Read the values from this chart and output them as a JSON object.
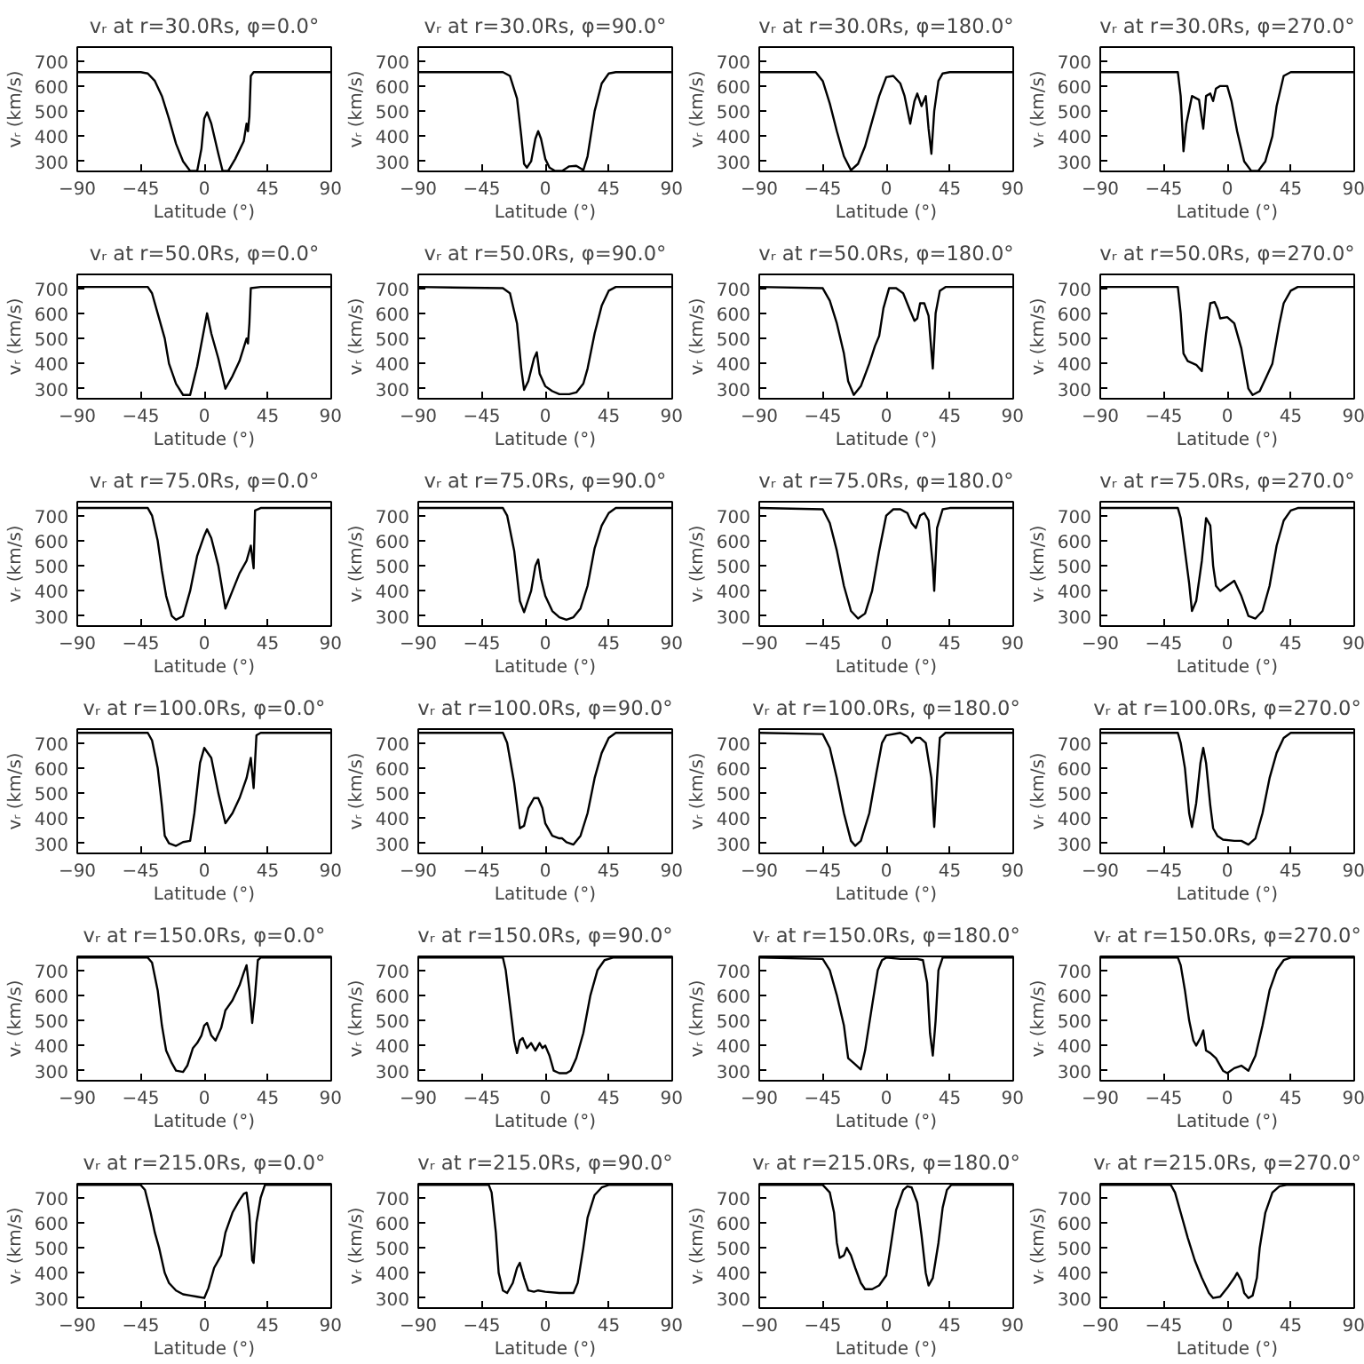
{
  "chart_data": [
    {
      "type": "line",
      "title": "vᵣ at r=30.0Rs, φ=0.0°",
      "xlabel": "Latitude (°)",
      "ylabel": "vᵣ (km/s)",
      "color": "#000000",
      "xlim": [
        -90,
        90
      ],
      "ylim": [
        260,
        755
      ],
      "xticks": [
        -90,
        -45,
        0,
        45,
        90
      ],
      "yticks": [
        300,
        400,
        500,
        600,
        700
      ],
      "x": [
        -90,
        -45,
        -40,
        -35,
        -30,
        -25,
        -20,
        -15,
        -10,
        -5,
        -2,
        0,
        2,
        5,
        10,
        13,
        17,
        22,
        28,
        30,
        31,
        32,
        33,
        35,
        90
      ],
      "values": [
        655,
        655,
        650,
        620,
        560,
        470,
        370,
        300,
        262,
        262,
        350,
        470,
        495,
        450,
        330,
        262,
        262,
        310,
        380,
        450,
        420,
        480,
        640,
        655,
        655
      ]
    },
    {
      "type": "line",
      "title": "vᵣ at r=30.0Rs, φ=90.0°",
      "xlabel": "Latitude (°)",
      "ylabel": "vᵣ (km/s)",
      "color": "#000000",
      "xlim": [
        -90,
        90
      ],
      "ylim": [
        260,
        755
      ],
      "xticks": [
        -90,
        -45,
        0,
        45,
        90
      ],
      "yticks": [
        300,
        400,
        500,
        600,
        700
      ],
      "x": [
        -90,
        -30,
        -25,
        -20,
        -17,
        -15,
        -13,
        -10,
        -7,
        -5,
        -3,
        0,
        3,
        7,
        12,
        17,
        22,
        27,
        30,
        35,
        40,
        45,
        50,
        90
      ],
      "values": [
        655,
        655,
        640,
        550,
        400,
        290,
        275,
        300,
        390,
        420,
        390,
        310,
        275,
        262,
        262,
        280,
        282,
        265,
        320,
        500,
        610,
        650,
        655,
        655
      ]
    },
    {
      "type": "line",
      "title": "vᵣ at r=30.0Rs, φ=180.0°",
      "xlabel": "Latitude (°)",
      "ylabel": "vᵣ (km/s)",
      "color": "#000000",
      "xlim": [
        -90,
        90
      ],
      "ylim": [
        260,
        755
      ],
      "xticks": [
        -90,
        -45,
        0,
        45,
        90
      ],
      "yticks": [
        300,
        400,
        500,
        600,
        700
      ],
      "x": [
        -90,
        -50,
        -45,
        -40,
        -35,
        -30,
        -25,
        -20,
        -15,
        -10,
        -5,
        0,
        5,
        10,
        13,
        17,
        20,
        22,
        25,
        28,
        30,
        32,
        34,
        37,
        40,
        45,
        90
      ],
      "values": [
        655,
        655,
        620,
        530,
        420,
        320,
        265,
        290,
        360,
        460,
        560,
        635,
        640,
        610,
        560,
        450,
        540,
        570,
        520,
        560,
        430,
        330,
        500,
        620,
        650,
        655,
        655
      ]
    },
    {
      "type": "line",
      "title": "vᵣ at r=30.0Rs, φ=270.0°",
      "xlabel": "Latitude (°)",
      "ylabel": "vᵣ (km/s)",
      "color": "#000000",
      "xlim": [
        -90,
        90
      ],
      "ylim": [
        260,
        755
      ],
      "xticks": [
        -90,
        -45,
        0,
        45,
        90
      ],
      "yticks": [
        300,
        400,
        500,
        600,
        700
      ],
      "x": [
        -90,
        -35,
        -33,
        -31,
        -29,
        -25,
        -20,
        -17,
        -15,
        -12,
        -10,
        -8,
        -5,
        0,
        3,
        7,
        12,
        17,
        22,
        27,
        32,
        35,
        40,
        45,
        90
      ],
      "values": [
        655,
        655,
        560,
        340,
        450,
        560,
        545,
        430,
        560,
        570,
        540,
        590,
        600,
        600,
        540,
        420,
        300,
        262,
        262,
        300,
        400,
        520,
        640,
        655,
        655
      ]
    },
    {
      "type": "line",
      "title": "vᵣ at r=50.0Rs, φ=0.0°",
      "xlabel": "Latitude (°)",
      "ylabel": "vᵣ (km/s)",
      "color": "#000000",
      "xlim": [
        -90,
        90
      ],
      "ylim": [
        260,
        755
      ],
      "xticks": [
        -90,
        -45,
        0,
        45,
        90
      ],
      "yticks": [
        300,
        400,
        500,
        600,
        700
      ],
      "x": [
        -90,
        -40,
        -37,
        -33,
        -28,
        -25,
        -20,
        -15,
        -10,
        -5,
        0,
        2,
        5,
        10,
        15,
        20,
        25,
        30,
        31,
        32,
        33,
        40,
        90
      ],
      "values": [
        705,
        705,
        680,
        600,
        500,
        400,
        320,
        275,
        275,
        390,
        540,
        600,
        520,
        420,
        300,
        350,
        410,
        500,
        480,
        560,
        700,
        705,
        705
      ]
    },
    {
      "type": "line",
      "title": "vᵣ at r=50.0Rs, φ=90.0°",
      "xlabel": "Latitude (°)",
      "ylabel": "vᵣ (km/s)",
      "color": "#000000",
      "xlim": [
        -90,
        90
      ],
      "ylim": [
        260,
        755
      ],
      "xticks": [
        -90,
        -45,
        0,
        45,
        90
      ],
      "yticks": [
        300,
        400,
        500,
        600,
        700
      ],
      "x": [
        -90,
        -30,
        -25,
        -20,
        -17,
        -15,
        -12,
        -8,
        -6,
        -4,
        0,
        5,
        10,
        17,
        22,
        27,
        30,
        35,
        40,
        45,
        50,
        90
      ],
      "values": [
        705,
        700,
        680,
        560,
        380,
        295,
        330,
        420,
        445,
        360,
        310,
        290,
        278,
        278,
        285,
        320,
        380,
        520,
        630,
        690,
        705,
        705
      ]
    },
    {
      "type": "line",
      "title": "vᵣ at r=50.0Rs, φ=180.0°",
      "xlabel": "Latitude (°)",
      "ylabel": "vᵣ (km/s)",
      "color": "#000000",
      "xlim": [
        -90,
        90
      ],
      "ylim": [
        260,
        755
      ],
      "xticks": [
        -90,
        -45,
        0,
        45,
        90
      ],
      "yticks": [
        300,
        400,
        500,
        600,
        700
      ],
      "x": [
        -90,
        -45,
        -40,
        -35,
        -30,
        -27,
        -23,
        -18,
        -12,
        -8,
        -5,
        -2,
        2,
        7,
        12,
        17,
        20,
        22,
        24,
        27,
        30,
        33,
        35,
        38,
        42,
        90
      ],
      "values": [
        705,
        700,
        650,
        560,
        440,
        330,
        275,
        310,
        400,
        470,
        510,
        620,
        700,
        700,
        680,
        610,
        570,
        580,
        640,
        640,
        590,
        380,
        600,
        690,
        705,
        705
      ]
    },
    {
      "type": "line",
      "title": "vᵣ at r=50.0Rs, φ=270.0°",
      "xlabel": "Latitude (°)",
      "ylabel": "vᵣ (km/s)",
      "color": "#000000",
      "xlim": [
        -90,
        90
      ],
      "ylim": [
        260,
        755
      ],
      "xticks": [
        -90,
        -45,
        0,
        45,
        90
      ],
      "yticks": [
        300,
        400,
        500,
        600,
        700
      ],
      "x": [
        -90,
        -35,
        -33,
        -31,
        -28,
        -22,
        -18,
        -15,
        -12,
        -9,
        -7,
        -5,
        0,
        5,
        10,
        15,
        18,
        23,
        28,
        32,
        37,
        40,
        45,
        50,
        90
      ],
      "values": [
        705,
        705,
        600,
        440,
        410,
        395,
        370,
        520,
        640,
        645,
        620,
        580,
        585,
        560,
        460,
        300,
        275,
        290,
        350,
        400,
        560,
        640,
        690,
        705,
        705
      ]
    },
    {
      "type": "line",
      "title": "vᵣ at r=75.0Rs, φ=0.0°",
      "xlabel": "Latitude (°)",
      "ylabel": "vᵣ (km/s)",
      "color": "#000000",
      "xlim": [
        -90,
        90
      ],
      "ylim": [
        260,
        755
      ],
      "xticks": [
        -90,
        -45,
        0,
        45,
        90
      ],
      "yticks": [
        300,
        400,
        500,
        600,
        700
      ],
      "x": [
        -90,
        -40,
        -37,
        -33,
        -30,
        -27,
        -23,
        -20,
        -15,
        -10,
        -5,
        0,
        2,
        5,
        10,
        15,
        20,
        25,
        30,
        33,
        35,
        36,
        40,
        90
      ],
      "values": [
        730,
        730,
        700,
        600,
        480,
        380,
        300,
        285,
        300,
        400,
        540,
        620,
        645,
        610,
        500,
        330,
        400,
        470,
        520,
        580,
        490,
        720,
        730,
        730
      ]
    },
    {
      "type": "line",
      "title": "vᵣ at r=75.0Rs, φ=90.0°",
      "xlabel": "Latitude (°)",
      "ylabel": "vᵣ (km/s)",
      "color": "#000000",
      "xlim": [
        -90,
        90
      ],
      "ylim": [
        260,
        755
      ],
      "xticks": [
        -90,
        -45,
        0,
        45,
        90
      ],
      "yticks": [
        300,
        400,
        500,
        600,
        700
      ],
      "x": [
        -90,
        -30,
        -27,
        -22,
        -18,
        -15,
        -10,
        -7,
        -5,
        -3,
        0,
        5,
        10,
        15,
        20,
        25,
        30,
        35,
        40,
        45,
        50,
        90
      ],
      "values": [
        730,
        730,
        700,
        560,
        360,
        315,
        400,
        500,
        525,
        450,
        380,
        320,
        295,
        285,
        295,
        330,
        420,
        570,
        660,
        710,
        730,
        730
      ]
    },
    {
      "type": "line",
      "title": "vᵣ at r=75.0Rs, φ=180.0°",
      "xlabel": "Latitude (°)",
      "ylabel": "vᵣ (km/s)",
      "color": "#000000",
      "xlim": [
        -90,
        90
      ],
      "ylim": [
        260,
        755
      ],
      "xticks": [
        -90,
        -45,
        0,
        45,
        90
      ],
      "yticks": [
        300,
        400,
        500,
        600,
        700
      ],
      "x": [
        -90,
        -45,
        -40,
        -35,
        -30,
        -25,
        -20,
        -15,
        -10,
        -5,
        0,
        5,
        10,
        15,
        18,
        21,
        24,
        27,
        30,
        33,
        34,
        36,
        40,
        45,
        90
      ],
      "values": [
        730,
        725,
        670,
        560,
        420,
        320,
        290,
        310,
        400,
        560,
        700,
        725,
        725,
        710,
        670,
        650,
        700,
        710,
        680,
        500,
        400,
        650,
        725,
        730,
        730
      ]
    },
    {
      "type": "line",
      "title": "vᵣ at r=75.0Rs, φ=270.0°",
      "xlabel": "Latitude (°)",
      "ylabel": "vᵣ (km/s)",
      "color": "#000000",
      "xlim": [
        -90,
        90
      ],
      "ylim": [
        260,
        755
      ],
      "xticks": [
        -90,
        -45,
        0,
        45,
        90
      ],
      "yticks": [
        300,
        400,
        500,
        600,
        700
      ],
      "x": [
        -90,
        -35,
        -33,
        -30,
        -27,
        -25,
        -22,
        -18,
        -15,
        -12,
        -10,
        -8,
        -5,
        0,
        5,
        10,
        15,
        20,
        25,
        30,
        35,
        40,
        45,
        50,
        90
      ],
      "values": [
        730,
        730,
        690,
        560,
        430,
        320,
        360,
        520,
        690,
        660,
        500,
        420,
        400,
        420,
        440,
        380,
        300,
        290,
        320,
        420,
        580,
        680,
        720,
        730,
        730
      ]
    },
    {
      "type": "line",
      "title": "vᵣ at r=100.0Rs, φ=0.0°",
      "xlabel": "Latitude (°)",
      "ylabel": "vᵣ (km/s)",
      "color": "#000000",
      "xlim": [
        -90,
        90
      ],
      "ylim": [
        260,
        755
      ],
      "xticks": [
        -90,
        -45,
        0,
        45,
        90
      ],
      "yticks": [
        300,
        400,
        500,
        600,
        700
      ],
      "x": [
        -90,
        -40,
        -37,
        -33,
        -30,
        -28,
        -25,
        -20,
        -15,
        -10,
        -7,
        -3,
        0,
        5,
        10,
        15,
        20,
        25,
        30,
        33,
        35,
        37,
        40,
        90
      ],
      "values": [
        740,
        740,
        710,
        600,
        450,
        330,
        300,
        290,
        305,
        310,
        420,
        620,
        680,
        640,
        500,
        380,
        420,
        480,
        560,
        640,
        520,
        730,
        740,
        740
      ]
    },
    {
      "type": "line",
      "title": "vᵣ at r=100.0Rs, φ=90.0°",
      "xlabel": "Latitude (°)",
      "ylabel": "vᵣ (km/s)",
      "color": "#000000",
      "xlim": [
        -90,
        90
      ],
      "ylim": [
        260,
        755
      ],
      "xticks": [
        -90,
        -45,
        0,
        45,
        90
      ],
      "yticks": [
        300,
        400,
        500,
        600,
        700
      ],
      "x": [
        -90,
        -30,
        -27,
        -22,
        -18,
        -15,
        -12,
        -8,
        -5,
        -2,
        0,
        5,
        10,
        12,
        15,
        20,
        25,
        30,
        35,
        40,
        45,
        50,
        90
      ],
      "values": [
        740,
        740,
        700,
        540,
        360,
        370,
        440,
        480,
        480,
        440,
        380,
        330,
        320,
        320,
        305,
        295,
        330,
        420,
        560,
        660,
        720,
        740,
        740
      ]
    },
    {
      "type": "line",
      "title": "vᵣ at r=100.0Rs, φ=180.0°",
      "xlabel": "Latitude (°)",
      "ylabel": "vᵣ (km/s)",
      "color": "#000000",
      "xlim": [
        -90,
        90
      ],
      "ylim": [
        260,
        755
      ],
      "xticks": [
        -90,
        -45,
        0,
        45,
        90
      ],
      "yticks": [
        300,
        400,
        500,
        600,
        700
      ],
      "x": [
        -90,
        -45,
        -40,
        -35,
        -30,
        -25,
        -22,
        -18,
        -12,
        -7,
        -3,
        0,
        10,
        15,
        18,
        21,
        24,
        28,
        32,
        34,
        36,
        38,
        42,
        90
      ],
      "values": [
        740,
        735,
        680,
        560,
        420,
        310,
        290,
        310,
        420,
        580,
        700,
        730,
        740,
        725,
        700,
        720,
        720,
        700,
        560,
        365,
        560,
        720,
        740,
        740
      ]
    },
    {
      "type": "line",
      "title": "vᵣ at r=100.0Rs, φ=270.0°",
      "xlabel": "Latitude (°)",
      "ylabel": "vᵣ (km/s)",
      "color": "#000000",
      "xlim": [
        -90,
        90
      ],
      "ylim": [
        260,
        755
      ],
      "xticks": [
        -90,
        -45,
        0,
        45,
        90
      ],
      "yticks": [
        300,
        400,
        500,
        600,
        700
      ],
      "x": [
        -90,
        -35,
        -33,
        -30,
        -27,
        -25,
        -22,
        -19,
        -17,
        -15,
        -12,
        -10,
        -7,
        -3,
        5,
        10,
        15,
        20,
        25,
        30,
        35,
        40,
        45,
        90
      ],
      "values": [
        740,
        740,
        700,
        600,
        420,
        365,
        460,
        620,
        680,
        620,
        450,
        360,
        330,
        315,
        310,
        310,
        295,
        320,
        420,
        560,
        660,
        720,
        740,
        740
      ]
    },
    {
      "type": "line",
      "title": "vᵣ at r=150.0Rs, φ=0.0°",
      "xlabel": "Latitude (°)",
      "ylabel": "vᵣ (km/s)",
      "color": "#000000",
      "xlim": [
        -90,
        90
      ],
      "ylim": [
        260,
        755
      ],
      "xticks": [
        -90,
        -45,
        0,
        45,
        90
      ],
      "yticks": [
        300,
        400,
        500,
        600,
        700
      ],
      "x": [
        -90,
        -40,
        -37,
        -33,
        -30,
        -27,
        -23,
        -20,
        -15,
        -12,
        -8,
        -5,
        -2,
        0,
        2,
        5,
        8,
        12,
        15,
        20,
        25,
        28,
        30,
        32,
        34,
        36,
        38,
        40,
        90
      ],
      "values": [
        750,
        750,
        730,
        620,
        480,
        380,
        330,
        300,
        295,
        320,
        390,
        410,
        440,
        480,
        490,
        440,
        420,
        470,
        540,
        580,
        640,
        690,
        720,
        620,
        490,
        600,
        740,
        750,
        750
      ]
    },
    {
      "type": "line",
      "title": "vᵣ at r=150.0Rs, φ=90.0°",
      "xlabel": "Latitude (°)",
      "ylabel": "vᵣ (km/s)",
      "color": "#000000",
      "xlim": [
        -90,
        90
      ],
      "ylim": [
        260,
        755
      ],
      "xticks": [
        -90,
        -45,
        0,
        45,
        90
      ],
      "yticks": [
        300,
        400,
        500,
        600,
        700
      ],
      "x": [
        -90,
        -30,
        -28,
        -25,
        -22,
        -20,
        -18,
        -16,
        -13,
        -10,
        -7,
        -4,
        -2,
        0,
        3,
        6,
        10,
        15,
        18,
        22,
        27,
        32,
        37,
        42,
        48,
        90
      ],
      "values": [
        750,
        750,
        700,
        560,
        420,
        370,
        420,
        430,
        390,
        410,
        380,
        410,
        390,
        400,
        360,
        300,
        290,
        290,
        300,
        350,
        450,
        600,
        700,
        740,
        750,
        750
      ]
    },
    {
      "type": "line",
      "title": "vᵣ at r=150.0Rs, φ=180.0°",
      "xlabel": "Latitude (°)",
      "ylabel": "vᵣ (km/s)",
      "color": "#000000",
      "xlim": [
        -90,
        90
      ],
      "ylim": [
        260,
        755
      ],
      "xticks": [
        -90,
        -45,
        0,
        45,
        90
      ],
      "yticks": [
        300,
        400,
        500,
        600,
        700
      ],
      "x": [
        -90,
        -45,
        -40,
        -35,
        -30,
        -27,
        -23,
        -18,
        -15,
        -10,
        -6,
        -3,
        0,
        10,
        17,
        22,
        26,
        29,
        31,
        33,
        35,
        37,
        40,
        90
      ],
      "values": [
        750,
        745,
        700,
        600,
        480,
        350,
        330,
        305,
        380,
        560,
        700,
        740,
        750,
        745,
        745,
        745,
        740,
        650,
        450,
        360,
        500,
        700,
        750,
        750
      ]
    },
    {
      "type": "line",
      "title": "vᵣ at r=150.0Rs, φ=270.0°",
      "xlabel": "Latitude (°)",
      "ylabel": "vᵣ (km/s)",
      "color": "#000000",
      "xlim": [
        -90,
        90
      ],
      "ylim": [
        260,
        755
      ],
      "xticks": [
        -90,
        -45,
        0,
        45,
        90
      ],
      "yticks": [
        300,
        400,
        500,
        600,
        700
      ],
      "x": [
        -90,
        -35,
        -33,
        -30,
        -27,
        -24,
        -22,
        -19,
        -17,
        -15,
        -12,
        -8,
        -3,
        0,
        5,
        10,
        15,
        20,
        25,
        30,
        35,
        40,
        45,
        90
      ],
      "values": [
        750,
        750,
        720,
        620,
        500,
        420,
        400,
        430,
        460,
        380,
        370,
        350,
        300,
        290,
        310,
        320,
        300,
        360,
        480,
        620,
        700,
        740,
        750,
        750
      ]
    },
    {
      "type": "line",
      "title": "vᵣ at r=215.0Rs, φ=0.0°",
      "xlabel": "Latitude (°)",
      "ylabel": "vᵣ (km/s)",
      "color": "#000000",
      "xlim": [
        -90,
        90
      ],
      "ylim": [
        260,
        755
      ],
      "xticks": [
        -90,
        -45,
        0,
        45,
        90
      ],
      "yticks": [
        300,
        400,
        500,
        600,
        700
      ],
      "x": [
        -90,
        -45,
        -42,
        -38,
        -35,
        -32,
        -28,
        -25,
        -20,
        -15,
        -10,
        -5,
        0,
        3,
        7,
        12,
        15,
        20,
        25,
        28,
        30,
        32,
        34,
        35,
        37,
        40,
        43,
        90
      ],
      "values": [
        750,
        750,
        730,
        640,
        560,
        500,
        400,
        360,
        330,
        315,
        310,
        305,
        300,
        340,
        420,
        470,
        560,
        640,
        690,
        715,
        720,
        630,
        450,
        440,
        600,
        700,
        750,
        750
      ]
    },
    {
      "type": "line",
      "title": "vᵣ at r=215.0Rs, φ=90.0°",
      "xlabel": "Latitude (°)",
      "ylabel": "vᵣ (km/s)",
      "color": "#000000",
      "xlim": [
        -90,
        90
      ],
      "ylim": [
        260,
        755
      ],
      "xticks": [
        -90,
        -45,
        0,
        45,
        90
      ],
      "yticks": [
        300,
        400,
        500,
        600,
        700
      ],
      "x": [
        -90,
        -40,
        -38,
        -35,
        -33,
        -30,
        -27,
        -23,
        -20,
        -18,
        -15,
        -12,
        -8,
        -5,
        0,
        10,
        20,
        23,
        27,
        30,
        35,
        40,
        45,
        90
      ],
      "values": [
        750,
        750,
        720,
        560,
        400,
        330,
        320,
        360,
        420,
        440,
        380,
        330,
        325,
        330,
        325,
        320,
        320,
        360,
        500,
        620,
        710,
        740,
        750,
        750
      ]
    },
    {
      "type": "line",
      "title": "vᵣ at r=215.0Rs, φ=180.0°",
      "xlabel": "Latitude (°)",
      "ylabel": "vᵣ (km/s)",
      "color": "#000000",
      "xlim": [
        -90,
        90
      ],
      "ylim": [
        260,
        755
      ],
      "xticks": [
        -90,
        -45,
        0,
        45,
        90
      ],
      "yticks": [
        300,
        400,
        500,
        600,
        700
      ],
      "x": [
        -90,
        -45,
        -40,
        -37,
        -35,
        -33,
        -30,
        -28,
        -25,
        -22,
        -18,
        -15,
        -10,
        -5,
        0,
        3,
        7,
        12,
        15,
        18,
        22,
        25,
        28,
        30,
        33,
        37,
        40,
        43,
        46,
        90
      ],
      "values": [
        750,
        750,
        720,
        640,
        520,
        460,
        470,
        500,
        470,
        420,
        360,
        335,
        335,
        350,
        390,
        500,
        650,
        730,
        745,
        740,
        680,
        550,
        400,
        350,
        380,
        520,
        660,
        730,
        750,
        750
      ]
    },
    {
      "type": "line",
      "title": "vᵣ at r=215.0Rs, φ=270.0°",
      "xlabel": "Latitude (°)",
      "ylabel": "vᵣ (km/s)",
      "color": "#000000",
      "xlim": [
        -90,
        90
      ],
      "ylim": [
        260,
        755
      ],
      "xticks": [
        -90,
        -45,
        0,
        45,
        90
      ],
      "yticks": [
        300,
        400,
        500,
        600,
        700
      ],
      "x": [
        -90,
        -40,
        -37,
        -33,
        -28,
        -23,
        -18,
        -13,
        -10,
        -5,
        0,
        5,
        7,
        10,
        12,
        15,
        18,
        21,
        23,
        27,
        32,
        37,
        42,
        90
      ],
      "values": [
        750,
        750,
        720,
        640,
        540,
        450,
        380,
        320,
        300,
        305,
        340,
        380,
        400,
        370,
        320,
        300,
        310,
        380,
        500,
        640,
        720,
        745,
        750,
        750
      ]
    }
  ]
}
